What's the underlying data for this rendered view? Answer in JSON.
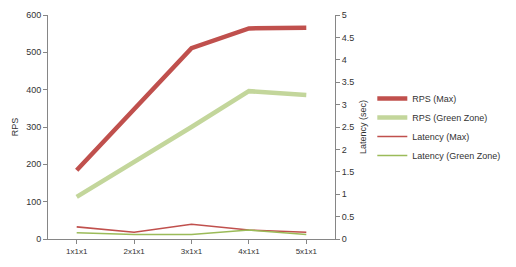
{
  "chart_data": {
    "type": "line",
    "y_label": "RPS",
    "y2_label": "Latency (sec)",
    "categories": [
      "1x1x1",
      "2x1x1",
      "3x1x1",
      "4x1x1",
      "5x1x1"
    ],
    "series": [
      {
        "name": "RPS (Max)",
        "color": "#c0504d",
        "values": [
          184,
          348,
          511,
          564,
          566
        ],
        "line_style": "solid"
      },
      {
        "name": "RPS (Green Zone)",
        "color": "#c3d69b",
        "values": [
          113,
          205,
          300,
          396,
          386
        ],
        "line_style": "solid"
      },
      {
        "name": "Latency (Max)",
        "color": "#c0504d",
        "axis": "y2",
        "values": [
          0.27,
          0.15,
          0.33,
          0.2,
          0.15
        ],
        "line_style": "solid"
      },
      {
        "name": "Latency (Green Zone)",
        "color": "#9bbb59",
        "axis": "y2",
        "values": [
          0.14,
          0.1,
          0.1,
          0.2,
          0.1
        ],
        "line_style": "solid"
      }
    ],
    "ylim": [
      0,
      600
    ],
    "yticks": [
      0,
      100,
      200,
      300,
      400,
      500,
      600
    ],
    "y2lim": [
      0,
      5
    ],
    "y2ticks": [
      0,
      0.5,
      1,
      1.5,
      2,
      2.5,
      3,
      3.5,
      4,
      4.5,
      5
    ],
    "grid": false,
    "legend": "right"
  }
}
